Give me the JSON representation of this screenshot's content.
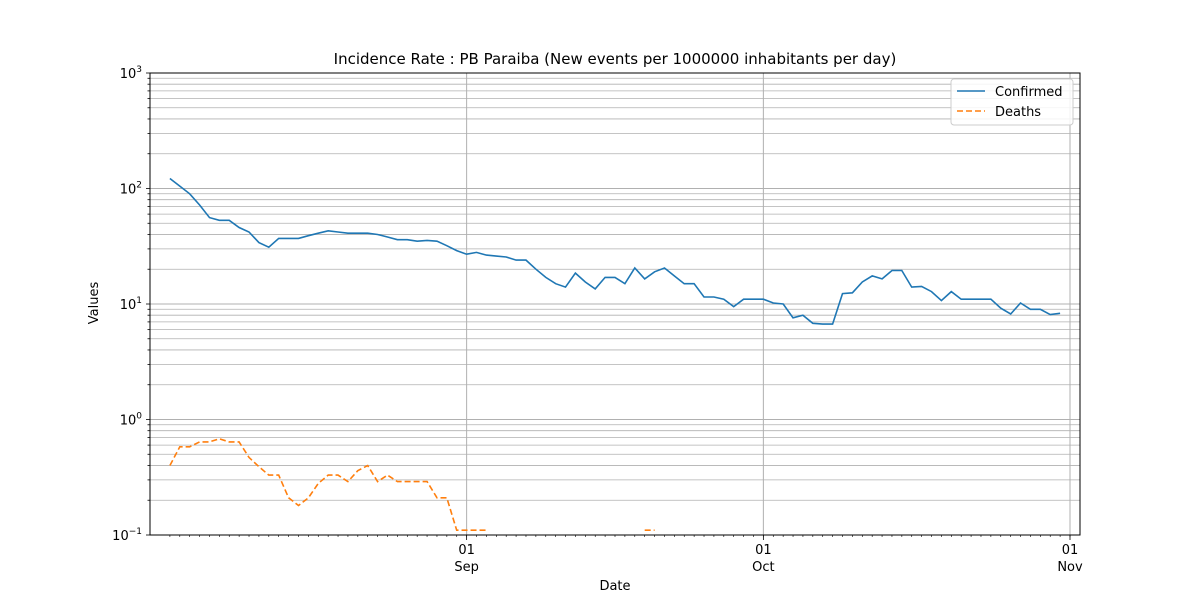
{
  "chart_data": {
    "type": "line",
    "title": "Incidence Rate : PB Paraiba (New events per 1000000 inhabitants per day)",
    "xlabel": "Date",
    "ylabel": "Values",
    "yscale": "log",
    "ylim": [
      0.1,
      1000
    ],
    "xlim": [
      "2020-08-01",
      "2020-11-01"
    ],
    "x_major_ticks": [
      {
        "date": "2020-09-01",
        "day": "01",
        "month": "Sep"
      },
      {
        "date": "2020-10-01",
        "day": "01",
        "month": "Oct"
      },
      {
        "date": "2020-11-01",
        "day": "01",
        "month": "Nov"
      }
    ],
    "y_ticks": [
      {
        "base": "10",
        "exp": "−1",
        "value": 0.1
      },
      {
        "base": "10",
        "exp": "0",
        "value": 1
      },
      {
        "base": "10",
        "exp": "1",
        "value": 10
      },
      {
        "base": "10",
        "exp": "2",
        "value": 100
      },
      {
        "base": "10",
        "exp": "3",
        "value": 1000
      }
    ],
    "grid": true,
    "legend_position": "top-right",
    "series": [
      {
        "name": "Confirmed",
        "color": "#1f77b4",
        "style": "solid",
        "start_date": "2020-08-02",
        "values": [
          122,
          105,
          90,
          72,
          56,
          53,
          53,
          46,
          42,
          34,
          31,
          37,
          37,
          37,
          39,
          41,
          43,
          42,
          41,
          41,
          41,
          40,
          38,
          36,
          36,
          35,
          35.5,
          35,
          32,
          29,
          27,
          28,
          26.5,
          26,
          25.5,
          24,
          24,
          20,
          17,
          15,
          14,
          18.5,
          15.5,
          13.5,
          17,
          17,
          15,
          20.5,
          16.5,
          19,
          20.5,
          17.5,
          15,
          15,
          11.5,
          11.5,
          11,
          9.5,
          11,
          11,
          11,
          10.2,
          10,
          7.6,
          8,
          6.8,
          6.7,
          6.7,
          12.3,
          12.5,
          15.5,
          17.5,
          16.5,
          19.5,
          19.5,
          14,
          14.2,
          12.8,
          10.7,
          12.8,
          11,
          11,
          11,
          11,
          9.2,
          8.2,
          10.2,
          9,
          9,
          8.1,
          8.3
        ]
      },
      {
        "name": "Deaths",
        "color": "#ff7f0e",
        "style": "dashed",
        "start_date": "2020-08-02",
        "values": [
          0.4,
          0.58,
          0.58,
          0.64,
          0.64,
          0.68,
          0.64,
          0.64,
          0.47,
          0.39,
          0.33,
          0.33,
          0.21,
          0.18,
          0.21,
          0.28,
          0.33,
          0.33,
          0.29,
          0.36,
          0.4,
          0.29,
          0.33,
          0.29,
          0.29,
          0.29,
          0.29,
          0.21,
          0.21,
          0.11,
          0.11,
          0.11,
          0.11,
          null,
          null,
          null,
          null,
          null,
          null,
          null,
          null,
          null,
          null,
          null,
          null,
          null,
          null,
          null,
          0.11,
          0.11,
          null,
          null,
          null,
          null,
          null,
          null,
          null,
          null,
          null,
          null,
          null,
          null,
          null,
          null,
          null,
          null,
          null,
          null,
          null,
          null,
          null,
          null,
          null,
          null,
          null,
          null,
          null,
          null,
          null,
          null,
          null,
          null,
          null,
          null,
          null,
          null,
          null,
          null,
          null,
          null,
          null
        ]
      }
    ]
  }
}
